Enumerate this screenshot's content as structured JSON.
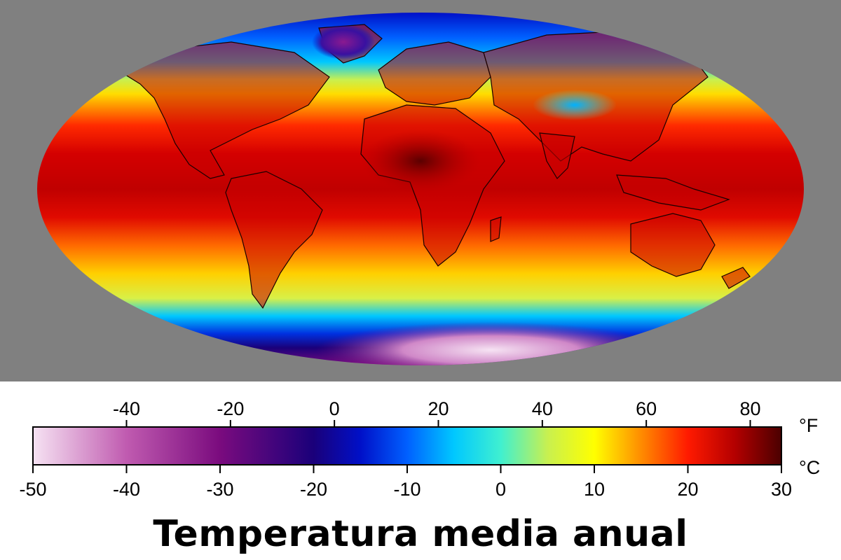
{
  "caption": "Temperatura media anual",
  "colors": {
    "panel_background": "#808080",
    "colorbar_stops": [
      {
        "celsius": -50,
        "color": "#f6e3f3"
      },
      {
        "celsius": -40,
        "color": "#c05bb0"
      },
      {
        "celsius": -30,
        "color": "#7a0b7e"
      },
      {
        "celsius": -20,
        "color": "#1a007a"
      },
      {
        "celsius": -15,
        "color": "#0010c8"
      },
      {
        "celsius": -10,
        "color": "#0060ff"
      },
      {
        "celsius": -5,
        "color": "#00c8ff"
      },
      {
        "celsius": 0,
        "color": "#40f0d0"
      },
      {
        "celsius": 5,
        "color": "#c8f050"
      },
      {
        "celsius": 10,
        "color": "#ffff00"
      },
      {
        "celsius": 15,
        "color": "#ff8c00"
      },
      {
        "celsius": 20,
        "color": "#ff1a00"
      },
      {
        "celsius": 25,
        "color": "#b40000"
      },
      {
        "celsius": 30,
        "color": "#4a0000"
      }
    ]
  },
  "legend": {
    "celsius_unit": "°C",
    "fahrenheit_unit": "°F",
    "celsius_ticks": [
      {
        "value": -50,
        "label": "-50"
      },
      {
        "value": -40,
        "label": "-40"
      },
      {
        "value": -30,
        "label": "-30"
      },
      {
        "value": -20,
        "label": "-20"
      },
      {
        "value": -10,
        "label": "-10"
      },
      {
        "value": 0,
        "label": "0"
      },
      {
        "value": 10,
        "label": "10"
      },
      {
        "value": 20,
        "label": "20"
      },
      {
        "value": 30,
        "label": "30"
      }
    ],
    "fahrenheit_ticks": [
      {
        "value": -40,
        "label": "-40"
      },
      {
        "value": -20,
        "label": "-20"
      },
      {
        "value": 0,
        "label": "0"
      },
      {
        "value": 20,
        "label": "20"
      },
      {
        "value": 40,
        "label": "40"
      },
      {
        "value": 60,
        "label": "60"
      },
      {
        "value": 80,
        "label": "80"
      }
    ]
  }
}
